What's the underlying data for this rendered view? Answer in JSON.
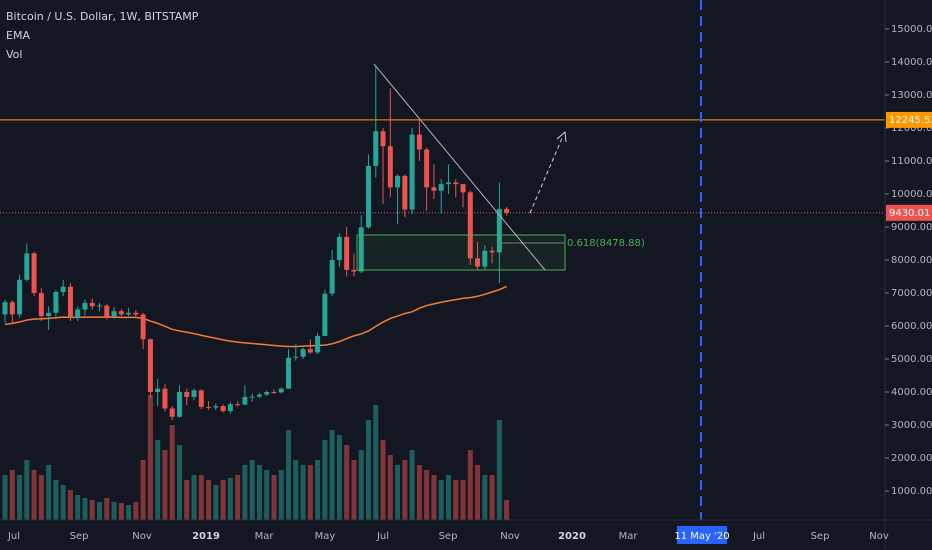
{
  "chart_data": {
    "type": "candlestick",
    "title": "Bitcoin / U.S. Dollar, 1W, BITSTAMP",
    "indicators": [
      "EMA",
      "Vol"
    ],
    "up_color": "#26a69a",
    "down_color": "#ef5350",
    "ema_color": "#f57c35",
    "open": [
      6350,
      6720,
      6350,
      7400,
      8200,
      7000,
      6300,
      6400,
      7030,
      7190,
      6250,
      6500,
      6700,
      6600,
      6620,
      6290,
      6450,
      6350,
      6400,
      6350,
      5600,
      4000,
      4100,
      3500,
      3250,
      4000,
      3850,
      4050,
      3550,
      3530,
      3570,
      3420,
      3630,
      3620,
      3850,
      3860,
      3920,
      4000,
      3990,
      4100,
      5040,
      5070,
      5300,
      5200,
      5700,
      6980,
      8000,
      8700,
      7700,
      7650,
      8990,
      10850,
      11900,
      11450,
      10200,
      10550,
      9530,
      11800,
      11350,
      10200,
      10100,
      10300,
      10350,
      10300,
      10050,
      8050,
      7800,
      8280,
      8230,
      9550
    ],
    "high": [
      6800,
      6780,
      7550,
      8500,
      8250,
      7150,
      6600,
      7100,
      7400,
      7300,
      6600,
      6800,
      6830,
      6700,
      6660,
      6580,
      6520,
      6550,
      6480,
      6400,
      5620,
      4400,
      4250,
      3580,
      4200,
      4100,
      4100,
      4080,
      3720,
      3650,
      3620,
      3700,
      3720,
      4200,
      3950,
      3980,
      4050,
      4080,
      4150,
      5300,
      5450,
      5350,
      5600,
      5800,
      7100,
      8300,
      8800,
      9000,
      8200,
      9350,
      11200,
      13880,
      12000,
      13200,
      10600,
      10600,
      12000,
      12300,
      11400,
      10900,
      10450,
      10900,
      10450,
      10300,
      10100,
      8550,
      8450,
      8400,
      10350,
      9600
    ],
    "low": [
      6100,
      6100,
      6250,
      7350,
      6900,
      6150,
      5880,
      6280,
      6900,
      6150,
      6150,
      6320,
      6500,
      6450,
      6200,
      6220,
      6300,
      6300,
      6250,
      5300,
      3800,
      3580,
      3400,
      3150,
      3220,
      3600,
      3750,
      3480,
      3460,
      3450,
      3380,
      3350,
      3560,
      3600,
      3700,
      3820,
      3880,
      3940,
      3950,
      4100,
      4950,
      5000,
      5150,
      5150,
      5700,
      6900,
      7800,
      7500,
      7500,
      7600,
      8950,
      10500,
      9700,
      9900,
      9100,
      9300,
      9400,
      11000,
      9500,
      9850,
      9400,
      10000,
      9900,
      9600,
      7850,
      7700,
      7700,
      7900,
      7300,
      9350
    ],
    "close": [
      6720,
      6350,
      7400,
      8200,
      7000,
      6300,
      6400,
      7030,
      7190,
      6250,
      6500,
      6700,
      6600,
      6620,
      6290,
      6450,
      6350,
      6400,
      6350,
      5600,
      4000,
      4100,
      3500,
      3250,
      4000,
      3850,
      4050,
      3550,
      3530,
      3570,
      3420,
      3630,
      3620,
      3850,
      3860,
      3920,
      4000,
      3990,
      4100,
      5040,
      5070,
      5300,
      5200,
      5700,
      6980,
      8000,
      8700,
      7700,
      7650,
      8990,
      10850,
      11900,
      11450,
      10200,
      10550,
      9530,
      11800,
      11350,
      10200,
      10100,
      10300,
      10350,
      10300,
      10050,
      8050,
      7800,
      8280,
      8230,
      9550,
      9430
    ],
    "ema": [
      6050,
      6080,
      6120,
      6180,
      6210,
      6220,
      6230,
      6250,
      6270,
      6260,
      6260,
      6270,
      6270,
      6270,
      6270,
      6270,
      6260,
      6260,
      6260,
      6230,
      6150,
      6080,
      5990,
      5900,
      5850,
      5810,
      5770,
      5720,
      5670,
      5630,
      5580,
      5540,
      5510,
      5490,
      5470,
      5450,
      5430,
      5410,
      5390,
      5380,
      5380,
      5390,
      5400,
      5410,
      5420,
      5460,
      5530,
      5620,
      5700,
      5760,
      5850,
      5990,
      6120,
      6230,
      6300,
      6380,
      6430,
      6540,
      6620,
      6670,
      6720,
      6760,
      6800,
      6840,
      6860,
      6900,
      6960,
      7030,
      7100,
      7200
    ],
    "volume": [
      45,
      50,
      45,
      60,
      50,
      45,
      55,
      40,
      35,
      30,
      25,
      22,
      20,
      18,
      22,
      18,
      17,
      15,
      18,
      60,
      125,
      80,
      70,
      95,
      75,
      40,
      45,
      45,
      40,
      35,
      40,
      42,
      45,
      55,
      60,
      55,
      50,
      45,
      50,
      90,
      60,
      55,
      55,
      60,
      80,
      90,
      85,
      75,
      60,
      70,
      100,
      115,
      80,
      65,
      55,
      60,
      70,
      55,
      50,
      45,
      40,
      45,
      40,
      40,
      70,
      55,
      45,
      45,
      100,
      20
    ],
    "volume_lim": [
      0,
      130
    ],
    "ylim": [
      121,
      15879
    ],
    "yticks": [
      {
        "value": 1000,
        "label": "1000.00"
      },
      {
        "value": 2000,
        "label": "2000.00"
      },
      {
        "value": 3000,
        "label": "3000.00"
      },
      {
        "value": 4000,
        "label": "4000.00"
      },
      {
        "value": 5000,
        "label": "5000.00"
      },
      {
        "value": 6000,
        "label": "6000.00"
      },
      {
        "value": 7000,
        "label": "7000.00"
      },
      {
        "value": 8000,
        "label": "8000.00"
      },
      {
        "value": 9000,
        "label": "9000.00"
      },
      {
        "value": 10000,
        "label": "10000.00"
      },
      {
        "value": 11000,
        "label": "11000.00"
      },
      {
        "value": 12000,
        "label": "12000.00"
      },
      {
        "value": 13000,
        "label": "13000.00"
      },
      {
        "value": 14000,
        "label": "14000.00"
      },
      {
        "value": 15000,
        "label": "15000.00"
      }
    ],
    "x_labels": [
      "Jul",
      "Sep",
      "Nov",
      "2019",
      "Mar",
      "May",
      "Jul",
      "Sep",
      "Nov",
      "2020",
      "Mar",
      "Jul",
      "Sep",
      "Nov"
    ],
    "crosshair_label": "11 May '20",
    "levels": [
      {
        "value": 12245.52,
        "color": "#ff9800"
      },
      {
        "value": 9430.01,
        "color": "#ef5350"
      }
    ],
    "fib_label": "0.618(8478.88)"
  }
}
